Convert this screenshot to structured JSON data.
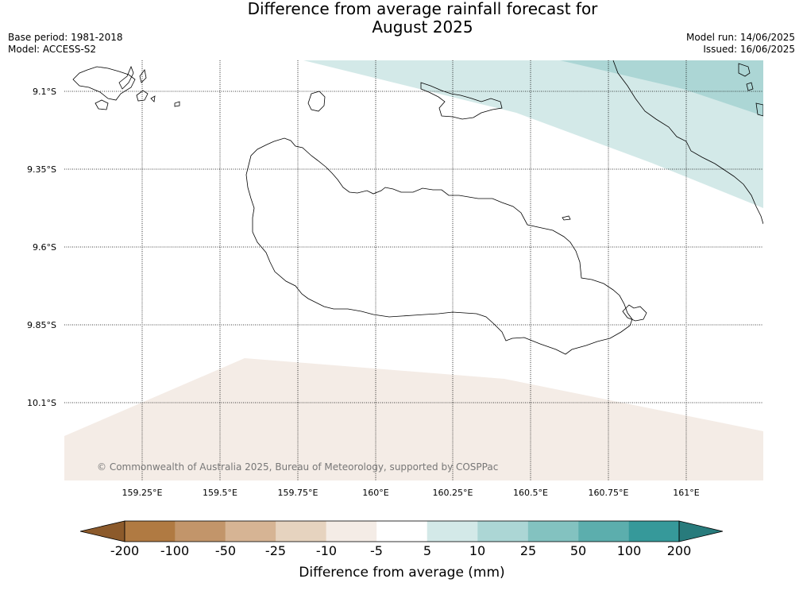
{
  "title": {
    "line1": "Difference from average rainfall forecast for",
    "line2": "August 2025"
  },
  "meta": {
    "base_period": "Base period: 1981-2018",
    "model": "Model: ACCESS-S2",
    "model_run": "Model run: 14/06/2025",
    "issued": "Issued: 16/06/2025"
  },
  "map": {
    "lon_range": [
      159.0,
      161.25
    ],
    "lat_range": [
      -9.0,
      -10.35
    ],
    "lat_labels": [
      "9.1°S",
      "9.35°S",
      "9.6°S",
      "9.85°S",
      "10.1°S"
    ],
    "lon_labels": [
      "159.25°E",
      "159.5°E",
      "159.75°E",
      "160°E",
      "160.25°E",
      "160.5°E",
      "160.75°E",
      "161°E"
    ],
    "copyright": "© Commonwealth of Australia 2025, Bureau of Meteorology, supported by COSPPac"
  },
  "colorbar": {
    "label": "Difference from average (mm)",
    "ticks": [
      "-200",
      "-100",
      "-50",
      "-25",
      "-10",
      "-5",
      "5",
      "10",
      "25",
      "50",
      "100",
      "200"
    ],
    "colors": [
      "#8c5a2b",
      "#b07a42",
      "#c2956a",
      "#d6b494",
      "#e6d3bf",
      "#f4ece6",
      "#ffffff",
      "#d3e9e8",
      "#acd6d5",
      "#83c2c0",
      "#5caead",
      "#36999a",
      "#287b7c"
    ]
  }
}
